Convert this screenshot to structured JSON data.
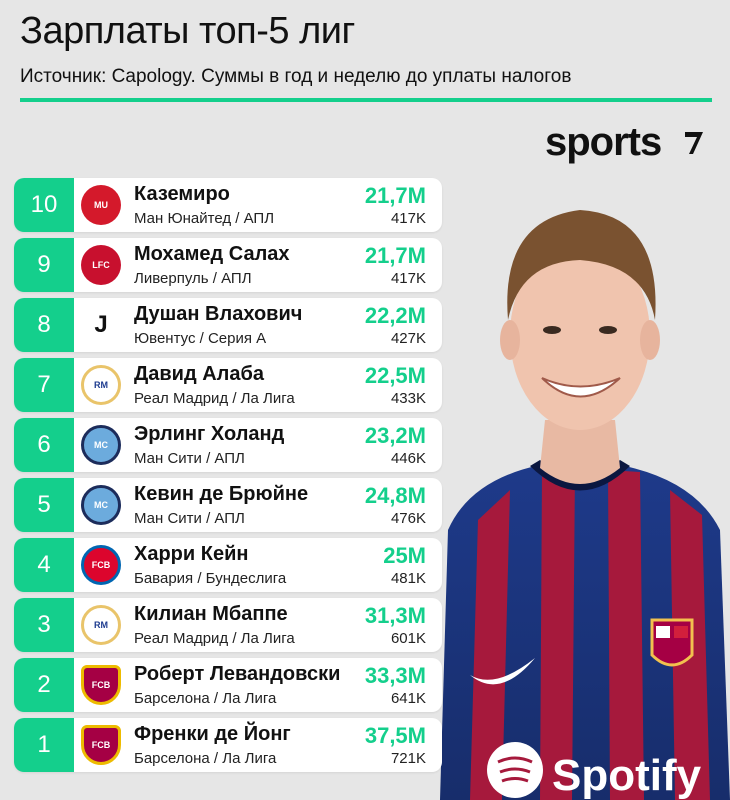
{
  "header": {
    "title": "Зарплаты топ-5 лиг",
    "subtitle": "Источник: Capology. Суммы в год и неделю до уплаты налогов",
    "brand": "sports"
  },
  "colors": {
    "accent": "#14cf8c",
    "background": "#e6e6e6",
    "card": "#ffffff"
  },
  "rows": [
    {
      "rank": "10",
      "name": "Каземиро",
      "club": "Ман Юнайтед / АПЛ",
      "year": "21,7M",
      "week": "417K",
      "logo": "manchester-united-crest-icon",
      "logo_color": "#d4192b",
      "logo_text": "MU"
    },
    {
      "rank": "9",
      "name": "Мохамед Салах",
      "club": "Ливерпуль / АПЛ",
      "year": "21,7M",
      "week": "417K",
      "logo": "liverpool-crest-icon",
      "logo_color": "#c8102e",
      "logo_text": "LFC"
    },
    {
      "rank": "8",
      "name": "Душан Влахович",
      "club": "Ювентус / Серия А",
      "year": "22,2M",
      "week": "427K",
      "logo": "juventus-crest-icon",
      "logo_color": "#111111",
      "logo_text": "J"
    },
    {
      "rank": "7",
      "name": "Давид Алаба",
      "club": "Реал Мадрид / Ла Лига",
      "year": "22,5M",
      "week": "433K",
      "logo": "real-madrid-crest-icon",
      "logo_color": "#e9c46a",
      "logo_text": "RM"
    },
    {
      "rank": "6",
      "name": "Эрлинг Холанд",
      "club": "Ман Сити / АПЛ",
      "year": "23,2M",
      "week": "446K",
      "logo": "manchester-city-crest-icon",
      "logo_color": "#6cabdd",
      "logo_text": "MC"
    },
    {
      "rank": "5",
      "name": "Кевин де Брюйне",
      "club": "Ман Сити / АПЛ",
      "year": "24,8M",
      "week": "476K",
      "logo": "manchester-city-crest-icon",
      "logo_color": "#6cabdd",
      "logo_text": "MC"
    },
    {
      "rank": "4",
      "name": "Харри Кейн",
      "club": "Бавария / Бундеслига",
      "year": "25M",
      "week": "481K",
      "logo": "bayern-crest-icon",
      "logo_color": "#dc052d",
      "logo_text": "FCB"
    },
    {
      "rank": "3",
      "name": "Килиан Мбаппе",
      "club": "Реал Мадрид / Ла Лига",
      "year": "31,3M",
      "week": "601K",
      "logo": "real-madrid-crest-icon",
      "logo_color": "#e9c46a",
      "logo_text": "RM"
    },
    {
      "rank": "2",
      "name": "Роберт Левандовски",
      "club": "Барселона / Ла Лига",
      "year": "33,3M",
      "week": "641K",
      "logo": "barcelona-crest-icon",
      "logo_color": "#a50044",
      "logo_text": "FCB"
    },
    {
      "rank": "1",
      "name": "Френки де Йонг",
      "club": "Барселона / Ла Лига",
      "year": "37,5M",
      "week": "721K",
      "logo": "barcelona-crest-icon",
      "logo_color": "#a50044",
      "logo_text": "FCB"
    }
  ]
}
